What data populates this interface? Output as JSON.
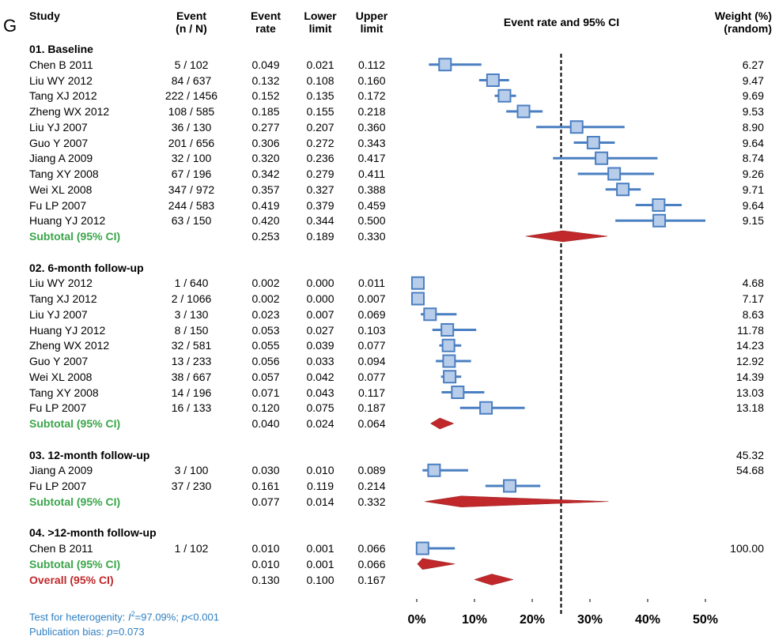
{
  "panel_label": "G",
  "headers": {
    "study": "Study",
    "event": [
      "Event",
      "(n / N)"
    ],
    "rate": [
      "Event",
      "rate"
    ],
    "lower": [
      "Lower",
      "limit"
    ],
    "upper": [
      "Upper",
      "limit"
    ],
    "plot": "Event rate and 95% CI",
    "weight": [
      "Weight (%)",
      "(random)"
    ]
  },
  "rows": [
    {
      "kind": "group",
      "label": "01. Baseline"
    },
    {
      "kind": "study",
      "study": "Chen B 2011",
      "event": "5 / 102",
      "rate": "0.049",
      "lower": "0.021",
      "upper": "0.112",
      "weight": "6.27"
    },
    {
      "kind": "study",
      "study": "Liu WY 2012",
      "event": "84 / 637",
      "rate": "0.132",
      "lower": "0.108",
      "upper": "0.160",
      "weight": "9.47"
    },
    {
      "kind": "study",
      "study": "Tang XJ 2012",
      "event": "222 / 1456",
      "rate": "0.152",
      "lower": "0.135",
      "upper": "0.172",
      "weight": "9.69"
    },
    {
      "kind": "study",
      "study": "Zheng WX 2012",
      "event": "108 / 585",
      "rate": "0.185",
      "lower": "0.155",
      "upper": "0.218",
      "weight": "9.53"
    },
    {
      "kind": "study",
      "study": "Liu YJ 2007",
      "event": "36 / 130",
      "rate": "0.277",
      "lower": "0.207",
      "upper": "0.360",
      "weight": "8.90"
    },
    {
      "kind": "study",
      "study": "Guo Y 2007",
      "event": "201 / 656",
      "rate": "0.306",
      "lower": "0.272",
      "upper": "0.343",
      "weight": "9.64"
    },
    {
      "kind": "study",
      "study": "Jiang A 2009",
      "event": "32 / 100",
      "rate": "0.320",
      "lower": "0.236",
      "upper": "0.417",
      "weight": "8.74"
    },
    {
      "kind": "study",
      "study": "Tang XY 2008",
      "event": "67 / 196",
      "rate": "0.342",
      "lower": "0.279",
      "upper": "0.411",
      "weight": "9.26"
    },
    {
      "kind": "study",
      "study": "Wei XL 2008",
      "event": "347 / 972",
      "rate": "0.357",
      "lower": "0.327",
      "upper": "0.388",
      "weight": "9.71"
    },
    {
      "kind": "study",
      "study": "Fu LP 2007",
      "event": "244 / 583",
      "rate": "0.419",
      "lower": "0.379",
      "upper": "0.459",
      "weight": "9.64"
    },
    {
      "kind": "study",
      "study": "Huang YJ 2012",
      "event": "63 / 150",
      "rate": "0.420",
      "lower": "0.344",
      "upper": "0.500",
      "weight": "9.15"
    },
    {
      "kind": "subtotal",
      "study": "Subtotal (95% CI)",
      "rate": "0.253",
      "lower": "0.189",
      "upper": "0.330"
    },
    {
      "kind": "blank"
    },
    {
      "kind": "group",
      "label": "02. 6-month follow-up"
    },
    {
      "kind": "study",
      "study": "Liu WY 2012",
      "event": "1 / 640",
      "rate": "0.002",
      "lower": "0.000",
      "upper": "0.011",
      "weight": "4.68"
    },
    {
      "kind": "study",
      "study": "Tang XJ 2012",
      "event": "2 / 1066",
      "rate": "0.002",
      "lower": "0.000",
      "upper": "0.007",
      "weight": "7.17"
    },
    {
      "kind": "study",
      "study": "Liu YJ 2007",
      "event": "3 / 130",
      "rate": "0.023",
      "lower": "0.007",
      "upper": "0.069",
      "weight": "8.63"
    },
    {
      "kind": "study",
      "study": "Huang YJ 2012",
      "event": "8 / 150",
      "rate": "0.053",
      "lower": "0.027",
      "upper": "0.103",
      "weight": "11.78"
    },
    {
      "kind": "study",
      "study": "Zheng WX 2012",
      "event": "32 / 581",
      "rate": "0.055",
      "lower": "0.039",
      "upper": "0.077",
      "weight": "14.23"
    },
    {
      "kind": "study",
      "study": "Guo Y 2007",
      "event": "13 / 233",
      "rate": "0.056",
      "lower": "0.033",
      "upper": "0.094",
      "weight": "12.92"
    },
    {
      "kind": "study",
      "study": "Wei XL 2008",
      "event": "38 / 667",
      "rate": "0.057",
      "lower": "0.042",
      "upper": "0.077",
      "weight": "14.39"
    },
    {
      "kind": "study",
      "study": "Tang XY 2008",
      "event": "14 / 196",
      "rate": "0.071",
      "lower": "0.043",
      "upper": "0.117",
      "weight": "13.03"
    },
    {
      "kind": "study",
      "study": "Fu LP 2007",
      "event": "16 / 133",
      "rate": "0.120",
      "lower": "0.075",
      "upper": "0.187",
      "weight": "13.18"
    },
    {
      "kind": "subtotal",
      "study": "Subtotal (95% CI)",
      "rate": "0.040",
      "lower": "0.024",
      "upper": "0.064"
    },
    {
      "kind": "blank"
    },
    {
      "kind": "group",
      "label": "03. 12-month follow-up",
      "weight": "45.32"
    },
    {
      "kind": "study",
      "study": "Jiang A 2009",
      "event": "3 / 100",
      "rate": "0.030",
      "lower": "0.010",
      "upper": "0.089",
      "weight": "54.68"
    },
    {
      "kind": "study",
      "study": "Fu LP 2007",
      "event": "37 / 230",
      "rate": "0.161",
      "lower": "0.119",
      "upper": "0.214"
    },
    {
      "kind": "subtotal",
      "study": "Subtotal (95% CI)",
      "rate": "0.077",
      "lower": "0.014",
      "upper": "0.332"
    },
    {
      "kind": "blank"
    },
    {
      "kind": "group",
      "label": "04. >12-month follow-up"
    },
    {
      "kind": "study",
      "study": "Chen B 2011",
      "event": "1 / 102",
      "rate": "0.010",
      "lower": "0.001",
      "upper": "0.066",
      "weight": "100.00"
    },
    {
      "kind": "subtotal",
      "study": "Subtotal (95% CI)",
      "rate": "0.010",
      "lower": "0.001",
      "upper": "0.066"
    },
    {
      "kind": "overall",
      "study": "Overall (95% CI)",
      "rate": "0.130",
      "lower": "0.100",
      "upper": "0.167"
    }
  ],
  "footer": {
    "heterogeneity_prefix": "Test for heterogenity: ",
    "i2_symbol": "I",
    "i2_value": "=97.09%; ",
    "p_symbol": "p",
    "p_value": "<0.001",
    "bias_prefix": "Publication bias: ",
    "bias_p_symbol": "p",
    "bias_value": "=0.073"
  },
  "chart_data": {
    "type": "forest",
    "xlabel": "",
    "xlim": [
      0,
      0.5
    ],
    "xticks": [
      0,
      0.1,
      0.2,
      0.3,
      0.4,
      0.5
    ],
    "xtick_labels": [
      "0%",
      "10%",
      "20%",
      "30%",
      "40%",
      "50%"
    ],
    "reference_line": 0.25,
    "colors": {
      "study": "#4a7fc1",
      "box_fill": "#b8cdea",
      "diamond": "#c0282b",
      "subtotal_text": "#3aa64a",
      "overall_text": "#c0282b",
      "footer_text": "#2f7fc1"
    }
  }
}
